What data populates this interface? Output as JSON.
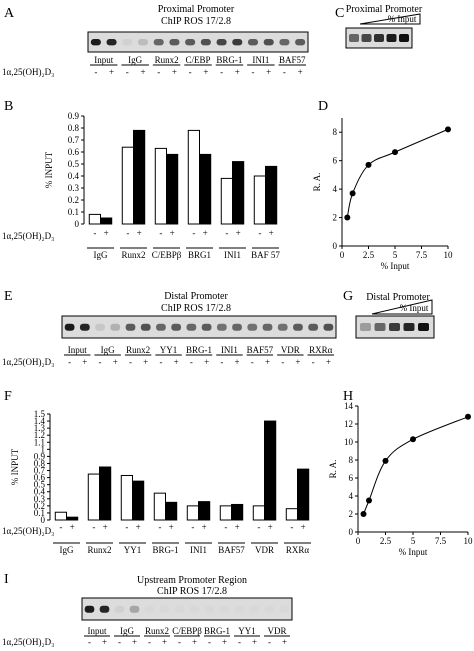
{
  "panels": {
    "A": {
      "letter": "A",
      "title1": "Proximal Promoter",
      "title2": "ChIP ROS 17/2.8",
      "lanes": [
        "Input",
        "IgG",
        "Runx2",
        "C/EBP",
        "BRG-1",
        "INI1",
        "BAF57"
      ],
      "treatment_label": "1α,25(OH)₂D₃",
      "signs": [
        "-",
        "+",
        "-",
        "+",
        "-",
        "+",
        "-",
        "+",
        "-",
        "+",
        "-",
        "+",
        "-",
        "+"
      ],
      "band_intensity": [
        0.9,
        0.85,
        0.05,
        0.15,
        0.55,
        0.6,
        0.6,
        0.65,
        0.7,
        0.75,
        0.6,
        0.65,
        0.55,
        0.6
      ]
    },
    "B": {
      "letter": "B",
      "ylabel": "% INPUT",
      "treatment_label": "1α,25(OH)₂D₃",
      "groups": [
        "IgG",
        "Runx2",
        "C/EBPβ",
        "BRG1",
        "INI1",
        "BAF 57"
      ],
      "signs": [
        "-",
        "+",
        "-",
        "+",
        "-",
        "+",
        "-",
        "+",
        "-",
        "+",
        "-",
        "+"
      ]
    },
    "C": {
      "letter": "C",
      "title": "Proximal Promoter",
      "wedge_label": "% Input",
      "band_intensity": [
        0.55,
        0.7,
        0.8,
        0.9,
        0.95
      ]
    },
    "D": {
      "letter": "D",
      "ylabel": "R. A.",
      "xlabel": "% Input"
    },
    "E": {
      "letter": "E",
      "title1": "Distal Promoter",
      "title2": "ChIP ROS 17/2.8",
      "lanes": [
        "Input",
        "IgG",
        "Runx2",
        "YY1",
        "BRG-1",
        "INI1",
        "BAF57",
        "VDR",
        "RXRα"
      ],
      "treatment_label": "1α,25(OH)₂D₃",
      "signs": [
        "-",
        "+",
        "-",
        "+",
        "-",
        "+",
        "-",
        "+",
        "-",
        "+",
        "-",
        "+",
        "-",
        "+",
        "-",
        "+",
        "-",
        "+"
      ],
      "band_intensity": [
        0.9,
        0.85,
        0.1,
        0.2,
        0.6,
        0.65,
        0.55,
        0.6,
        0.55,
        0.6,
        0.5,
        0.55,
        0.5,
        0.55,
        0.5,
        0.6,
        0.6,
        0.65
      ]
    },
    "F": {
      "letter": "F",
      "ylabel": "% INPUT",
      "treatment_label": "1α,25(OH)₂D₃",
      "groups": [
        "IgG",
        "Runx2",
        "YY1",
        "BRG-1",
        "INI1",
        "BAF57",
        "VDR",
        "RXRα"
      ],
      "signs": [
        "-",
        "+",
        "-",
        "+",
        "-",
        "+",
        "-",
        "+",
        "-",
        "+",
        "-",
        "+",
        "-",
        "+",
        "-",
        "+"
      ]
    },
    "G": {
      "letter": "G",
      "title": "Distal Promoter",
      "wedge_label": "% Input",
      "band_intensity": [
        0.3,
        0.55,
        0.75,
        0.85,
        0.95
      ]
    },
    "H": {
      "letter": "H",
      "ylabel": "R. A.",
      "xlabel": "% Input"
    },
    "I": {
      "letter": "I",
      "title1": "Upstream Promoter Region",
      "title2": "ChIP ROS 17/2.8",
      "lanes": [
        "Input",
        "IgG",
        "Runx2",
        "C/EBPβ",
        "BRG-1",
        "YY1",
        "VDR"
      ],
      "treatment_label": "1α,25(OH)₂D₃",
      "signs": [
        "-",
        "+",
        "-",
        "+",
        "-",
        "+",
        "-",
        "+",
        "-",
        "+",
        "-",
        "+",
        "-",
        "+"
      ],
      "band_intensity": [
        0.9,
        0.85,
        0.05,
        0.25,
        0.02,
        0.02,
        0.02,
        0.02,
        0.02,
        0.02,
        0.02,
        0.02,
        0.02,
        0.02
      ]
    }
  },
  "chart_data": [
    {
      "panel": "B",
      "type": "bar",
      "ylabel": "% INPUT",
      "ylim": [
        0,
        0.9
      ],
      "yticks": [
        0,
        0.1,
        0.2,
        0.3,
        0.4,
        0.5,
        0.6,
        0.7,
        0.8,
        0.9
      ],
      "categories": [
        "IgG",
        "Runx2",
        "C/EBPβ",
        "BRG1",
        "INI1",
        "BAF 57"
      ],
      "series": [
        {
          "treatment": "-",
          "color": "#ffffff",
          "values": [
            0.08,
            0.64,
            0.63,
            0.78,
            0.38,
            0.4
          ]
        },
        {
          "treatment": "+",
          "color": "#000000",
          "values": [
            0.05,
            0.78,
            0.58,
            0.58,
            0.52,
            0.48
          ]
        }
      ]
    },
    {
      "panel": "D",
      "type": "scatter",
      "xlabel": "% Input",
      "ylabel": "R. A.",
      "xlim": [
        0,
        10
      ],
      "ylim": [
        0,
        9
      ],
      "xticks": [
        0,
        2.5,
        5,
        7.5,
        10
      ],
      "yticks": [
        0,
        2,
        4,
        6,
        8
      ],
      "x": [
        0.5,
        1,
        2.5,
        5,
        10
      ],
      "y": [
        2.0,
        3.7,
        5.7,
        6.6,
        8.2
      ]
    },
    {
      "panel": "F",
      "type": "bar",
      "ylabel": "% INPUT",
      "ylim": [
        0,
        1.5
      ],
      "yticks": [
        0,
        0.1,
        0.2,
        0.3,
        0.4,
        0.5,
        0.6,
        0.7,
        0.8,
        0.9,
        1,
        1.1,
        1.2,
        1.3,
        1.4,
        1.5
      ],
      "categories": [
        "IgG",
        "Runx2",
        "YY1",
        "BRG-1",
        "INI1",
        "BAF57",
        "VDR",
        "RXRα"
      ],
      "series": [
        {
          "treatment": "-",
          "color": "#ffffff",
          "values": [
            0.11,
            0.65,
            0.63,
            0.38,
            0.2,
            0.2,
            0.2,
            0.16
          ]
        },
        {
          "treatment": "+",
          "color": "#000000",
          "values": [
            0.04,
            0.75,
            0.55,
            0.25,
            0.26,
            0.22,
            1.4,
            0.72
          ]
        }
      ]
    },
    {
      "panel": "H",
      "type": "scatter",
      "xlabel": "% Input",
      "ylabel": "R. A.",
      "xlim": [
        0,
        10
      ],
      "ylim": [
        0,
        14
      ],
      "xticks": [
        0,
        2.5,
        5,
        7.5,
        10
      ],
      "yticks": [
        0,
        2,
        4,
        6,
        8,
        10,
        12,
        14
      ],
      "x": [
        0.5,
        1,
        2.5,
        5,
        10
      ],
      "y": [
        2.0,
        3.5,
        7.9,
        10.3,
        12.8
      ]
    }
  ]
}
